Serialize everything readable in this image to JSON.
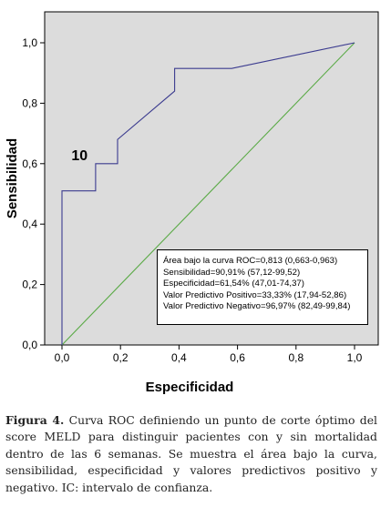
{
  "chart_data": {
    "type": "line",
    "title": "",
    "xlabel": "Especificidad",
    "ylabel": "Sensibilidad",
    "xlim": [
      0,
      1
    ],
    "ylim": [
      0,
      1
    ],
    "x_ticks": [
      "0,0",
      "0,2",
      "0,4",
      "0,6",
      "0,8",
      "1,0"
    ],
    "y_ticks": [
      "0,0",
      "0,2",
      "0,4",
      "0,6",
      "0,8",
      "1,0"
    ],
    "grid": false,
    "background": "#dcdcdc",
    "series": [
      {
        "color": "#3b3b8f",
        "x": [
          0,
          0,
          0.115,
          0.115,
          0.19,
          0.19,
          0.385,
          0.385,
          0.58,
          1.0
        ],
        "y": [
          0,
          0.51,
          0.51,
          0.6,
          0.6,
          0.68,
          0.84,
          0.915,
          0.915,
          1.0
        ]
      },
      {
        "color": "#5aaa46",
        "x": [
          0,
          1
        ],
        "y": [
          0,
          1
        ]
      }
    ],
    "annotations": [
      {
        "text": "10",
        "x": 0.06,
        "y": 0.6
      }
    ],
    "legend_lines": [
      "Área bajo la curva ROC=0,813 (0,663-0,963)",
      "Sensibilidad=90,91% (57,12-99,52)",
      "Especificidad=61,54% (47,01-74,37)",
      "Valor Predictivo Positivo=33,33% (17,94-52,86)",
      "Valor Predictivo Negativo=96,97% (82,49-99,84)"
    ]
  },
  "caption": {
    "label": "Figura 4.",
    "text": " Curva  ROC definiendo un punto de corte óptimo del score MELD  para distinguir pacientes con y sin mortalidad dentro de las 6 semanas. Se muestra el área bajo la curva, sensibilidad, especificidad y valores predictivos positivo y negativo. IC: intervalo de confianza."
  }
}
